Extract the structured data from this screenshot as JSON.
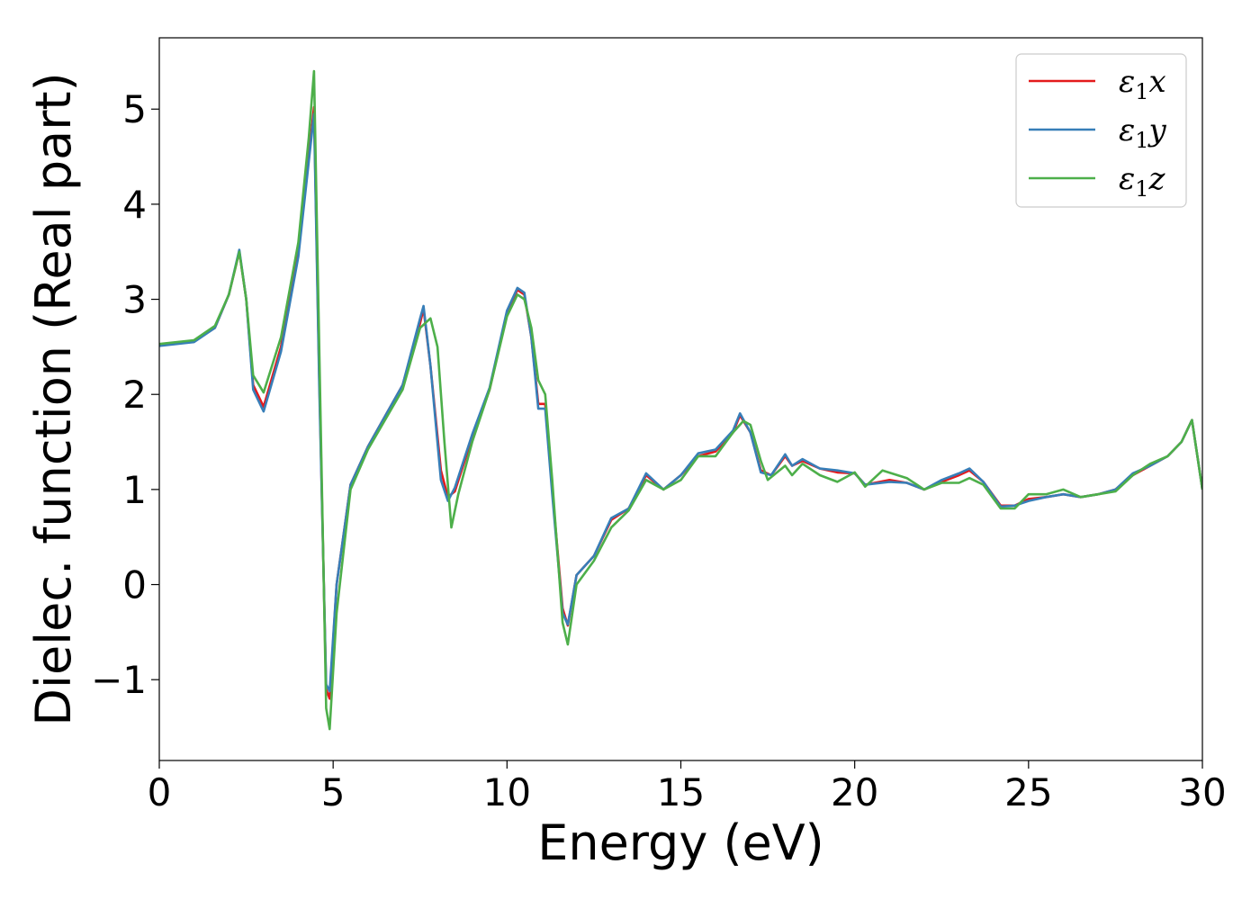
{
  "chart_data": {
    "type": "line",
    "xlabel": "Energy (eV)",
    "ylabel": "Dielec. function (Real part)",
    "xlim": [
      0,
      30
    ],
    "ylim": [
      -1.85,
      5.75
    ],
    "xticks": [
      0,
      5,
      10,
      15,
      20,
      25,
      30
    ],
    "xtick_labels": [
      "0",
      "5",
      "10",
      "15",
      "20",
      "25",
      "30"
    ],
    "yticks": [
      -1,
      0,
      1,
      2,
      3,
      4,
      5
    ],
    "ytick_labels": [
      "−1",
      "0",
      "1",
      "2",
      "3",
      "4",
      "5"
    ],
    "grid": false,
    "legend_position": "top-right",
    "series": [
      {
        "name": "ε₁x",
        "legend_base": "ε",
        "legend_sub": "1",
        "legend_var": "x",
        "color": "#e41a1c",
        "points": [
          [
            0,
            2.52
          ],
          [
            1,
            2.56
          ],
          [
            1.6,
            2.7
          ],
          [
            2.0,
            3.05
          ],
          [
            2.3,
            3.5
          ],
          [
            2.5,
            3.0
          ],
          [
            2.7,
            2.1
          ],
          [
            3.0,
            1.87
          ],
          [
            3.5,
            2.5
          ],
          [
            4.0,
            3.5
          ],
          [
            4.3,
            4.5
          ],
          [
            4.45,
            5.02
          ],
          [
            4.6,
            2.2
          ],
          [
            4.8,
            -1.1
          ],
          [
            4.9,
            -1.2
          ],
          [
            5.1,
            0.0
          ],
          [
            5.5,
            1.05
          ],
          [
            6.0,
            1.45
          ],
          [
            7.0,
            2.1
          ],
          [
            7.5,
            2.75
          ],
          [
            7.6,
            2.9
          ],
          [
            7.8,
            2.3
          ],
          [
            8.1,
            1.2
          ],
          [
            8.3,
            0.92
          ],
          [
            8.5,
            0.98
          ],
          [
            9.0,
            1.55
          ],
          [
            9.5,
            2.05
          ],
          [
            10.0,
            2.85
          ],
          [
            10.3,
            3.1
          ],
          [
            10.5,
            3.05
          ],
          [
            10.7,
            2.6
          ],
          [
            10.9,
            1.9
          ],
          [
            11.1,
            1.9
          ],
          [
            11.3,
            1.0
          ],
          [
            11.6,
            -0.25
          ],
          [
            11.75,
            -0.43
          ],
          [
            12.0,
            0.1
          ],
          [
            12.5,
            0.3
          ],
          [
            13.0,
            0.68
          ],
          [
            13.5,
            0.8
          ],
          [
            14.0,
            1.15
          ],
          [
            14.5,
            1.0
          ],
          [
            15.0,
            1.15
          ],
          [
            15.5,
            1.35
          ],
          [
            16.0,
            1.4
          ],
          [
            16.5,
            1.6
          ],
          [
            16.7,
            1.78
          ],
          [
            17.0,
            1.6
          ],
          [
            17.3,
            1.2
          ],
          [
            17.6,
            1.15
          ],
          [
            18.0,
            1.35
          ],
          [
            18.2,
            1.25
          ],
          [
            18.5,
            1.3
          ],
          [
            19.0,
            1.22
          ],
          [
            19.5,
            1.18
          ],
          [
            20.0,
            1.17
          ],
          [
            20.3,
            1.05
          ],
          [
            21.0,
            1.1
          ],
          [
            21.5,
            1.07
          ],
          [
            22.0,
            1.0
          ],
          [
            22.5,
            1.08
          ],
          [
            23.0,
            1.15
          ],
          [
            23.3,
            1.2
          ],
          [
            23.7,
            1.08
          ],
          [
            24.2,
            0.83
          ],
          [
            24.6,
            0.83
          ],
          [
            25.0,
            0.9
          ],
          [
            25.5,
            0.92
          ],
          [
            26.0,
            0.95
          ],
          [
            26.5,
            0.92
          ],
          [
            27.0,
            0.95
          ],
          [
            27.5,
            1.0
          ],
          [
            28.0,
            1.15
          ],
          [
            28.5,
            1.25
          ],
          [
            29.0,
            1.35
          ],
          [
            29.4,
            1.5
          ],
          [
            29.7,
            1.73
          ],
          [
            30.0,
            1.0
          ]
        ]
      },
      {
        "name": "ε₁y",
        "legend_base": "ε",
        "legend_sub": "1",
        "legend_var": "y",
        "color": "#377eb8",
        "points": [
          [
            0,
            2.51
          ],
          [
            1,
            2.55
          ],
          [
            1.6,
            2.7
          ],
          [
            2.0,
            3.05
          ],
          [
            2.3,
            3.52
          ],
          [
            2.5,
            3.0
          ],
          [
            2.7,
            2.05
          ],
          [
            3.0,
            1.82
          ],
          [
            3.5,
            2.45
          ],
          [
            4.0,
            3.45
          ],
          [
            4.3,
            4.45
          ],
          [
            4.45,
            4.95
          ],
          [
            4.6,
            2.1
          ],
          [
            4.8,
            -1.05
          ],
          [
            4.9,
            -1.12
          ],
          [
            5.1,
            0.0
          ],
          [
            5.5,
            1.05
          ],
          [
            6.0,
            1.45
          ],
          [
            7.0,
            2.1
          ],
          [
            7.5,
            2.8
          ],
          [
            7.6,
            2.93
          ],
          [
            7.8,
            2.3
          ],
          [
            8.1,
            1.1
          ],
          [
            8.3,
            0.88
          ],
          [
            8.5,
            1.02
          ],
          [
            9.0,
            1.58
          ],
          [
            9.5,
            2.07
          ],
          [
            10.0,
            2.88
          ],
          [
            10.3,
            3.12
          ],
          [
            10.5,
            3.07
          ],
          [
            10.7,
            2.6
          ],
          [
            10.9,
            1.85
          ],
          [
            11.1,
            1.85
          ],
          [
            11.3,
            0.95
          ],
          [
            11.6,
            -0.3
          ],
          [
            11.75,
            -0.42
          ],
          [
            12.0,
            0.1
          ],
          [
            12.5,
            0.3
          ],
          [
            13.0,
            0.7
          ],
          [
            13.5,
            0.8
          ],
          [
            14.0,
            1.17
          ],
          [
            14.5,
            1.0
          ],
          [
            15.0,
            1.15
          ],
          [
            15.5,
            1.38
          ],
          [
            16.0,
            1.42
          ],
          [
            16.5,
            1.62
          ],
          [
            16.7,
            1.8
          ],
          [
            17.0,
            1.6
          ],
          [
            17.3,
            1.18
          ],
          [
            17.6,
            1.15
          ],
          [
            18.0,
            1.37
          ],
          [
            18.2,
            1.25
          ],
          [
            18.5,
            1.32
          ],
          [
            19.0,
            1.22
          ],
          [
            19.5,
            1.2
          ],
          [
            20.0,
            1.17
          ],
          [
            20.3,
            1.05
          ],
          [
            21.0,
            1.08
          ],
          [
            21.5,
            1.07
          ],
          [
            22.0,
            1.0
          ],
          [
            22.5,
            1.1
          ],
          [
            23.0,
            1.17
          ],
          [
            23.3,
            1.22
          ],
          [
            23.7,
            1.08
          ],
          [
            24.2,
            0.82
          ],
          [
            24.6,
            0.83
          ],
          [
            25.0,
            0.88
          ],
          [
            25.5,
            0.92
          ],
          [
            26.0,
            0.95
          ],
          [
            26.5,
            0.92
          ],
          [
            27.0,
            0.95
          ],
          [
            27.5,
            1.0
          ],
          [
            28.0,
            1.17
          ],
          [
            28.5,
            1.25
          ],
          [
            29.0,
            1.35
          ],
          [
            29.4,
            1.5
          ],
          [
            29.7,
            1.73
          ],
          [
            30.0,
            1.0
          ]
        ]
      },
      {
        "name": "ε₁z",
        "legend_base": "ε",
        "legend_sub": "1",
        "legend_var": "z",
        "color": "#4daf4a",
        "points": [
          [
            0,
            2.53
          ],
          [
            1,
            2.57
          ],
          [
            1.6,
            2.72
          ],
          [
            2.0,
            3.05
          ],
          [
            2.3,
            3.5
          ],
          [
            2.5,
            3.0
          ],
          [
            2.7,
            2.2
          ],
          [
            3.0,
            2.02
          ],
          [
            3.5,
            2.6
          ],
          [
            4.0,
            3.6
          ],
          [
            4.3,
            4.7
          ],
          [
            4.45,
            5.4
          ],
          [
            4.6,
            2.5
          ],
          [
            4.8,
            -1.3
          ],
          [
            4.9,
            -1.52
          ],
          [
            5.1,
            -0.3
          ],
          [
            5.5,
            1.0
          ],
          [
            6.0,
            1.42
          ],
          [
            7.0,
            2.05
          ],
          [
            7.5,
            2.7
          ],
          [
            7.8,
            2.8
          ],
          [
            8.0,
            2.5
          ],
          [
            8.2,
            1.5
          ],
          [
            8.4,
            0.6
          ],
          [
            8.6,
            0.95
          ],
          [
            9.0,
            1.5
          ],
          [
            9.5,
            2.05
          ],
          [
            10.0,
            2.82
          ],
          [
            10.3,
            3.05
          ],
          [
            10.5,
            3.0
          ],
          [
            10.7,
            2.7
          ],
          [
            10.9,
            2.15
          ],
          [
            11.1,
            2.0
          ],
          [
            11.3,
            1.1
          ],
          [
            11.6,
            -0.4
          ],
          [
            11.75,
            -0.63
          ],
          [
            12.0,
            0.0
          ],
          [
            12.5,
            0.25
          ],
          [
            13.0,
            0.6
          ],
          [
            13.5,
            0.78
          ],
          [
            14.0,
            1.1
          ],
          [
            14.5,
            1.0
          ],
          [
            15.0,
            1.1
          ],
          [
            15.5,
            1.35
          ],
          [
            16.0,
            1.35
          ],
          [
            16.5,
            1.6
          ],
          [
            16.8,
            1.72
          ],
          [
            17.0,
            1.68
          ],
          [
            17.3,
            1.3
          ],
          [
            17.5,
            1.1
          ],
          [
            18.0,
            1.25
          ],
          [
            18.2,
            1.15
          ],
          [
            18.5,
            1.27
          ],
          [
            19.0,
            1.15
          ],
          [
            19.5,
            1.08
          ],
          [
            20.0,
            1.18
          ],
          [
            20.3,
            1.03
          ],
          [
            20.8,
            1.2
          ],
          [
            21.5,
            1.12
          ],
          [
            22.0,
            1.0
          ],
          [
            22.5,
            1.07
          ],
          [
            23.0,
            1.07
          ],
          [
            23.3,
            1.12
          ],
          [
            23.7,
            1.05
          ],
          [
            24.2,
            0.8
          ],
          [
            24.6,
            0.8
          ],
          [
            25.0,
            0.95
          ],
          [
            25.5,
            0.95
          ],
          [
            26.0,
            1.0
          ],
          [
            26.5,
            0.92
          ],
          [
            27.0,
            0.95
          ],
          [
            27.5,
            0.98
          ],
          [
            28.0,
            1.15
          ],
          [
            28.5,
            1.27
          ],
          [
            29.0,
            1.35
          ],
          [
            29.4,
            1.5
          ],
          [
            29.7,
            1.73
          ],
          [
            30.0,
            1.0
          ]
        ]
      }
    ]
  }
}
